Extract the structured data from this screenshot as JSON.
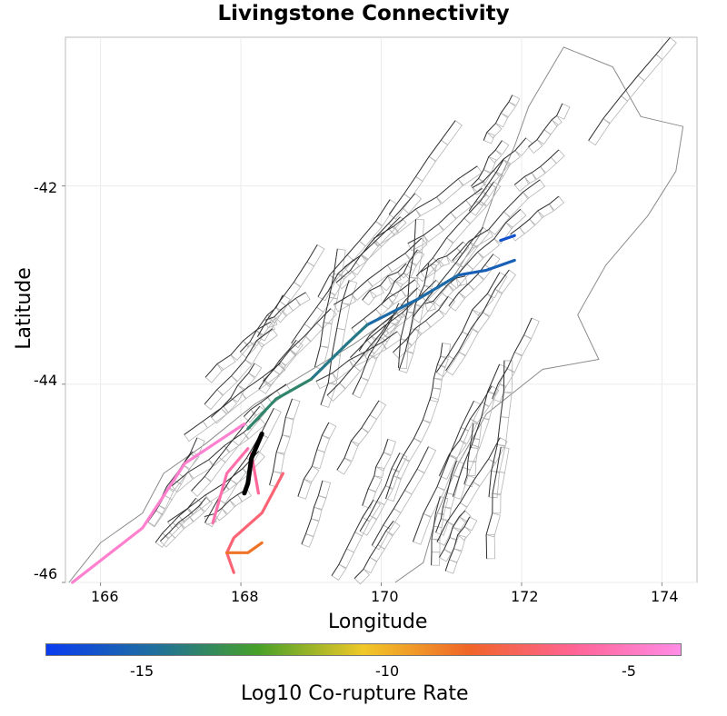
{
  "title": "Livingstone Connectivity",
  "x_axis": {
    "label": "Longitude",
    "ticks": [
      "166",
      "168",
      "170",
      "172",
      "174"
    ],
    "tick_values": [
      166,
      168,
      170,
      172,
      174
    ],
    "range": [
      165.5,
      174.5
    ]
  },
  "y_axis": {
    "label": "Latitude",
    "ticks": [
      "-42",
      "-44",
      "-46"
    ],
    "tick_values": [
      -42,
      -44,
      -46
    ],
    "range": [
      -46,
      -40.5
    ]
  },
  "colorbar": {
    "label": "Log10 Co-rupture Rate",
    "ticks": [
      "-15",
      "-10",
      "-5"
    ],
    "tick_values": [
      -15,
      -10,
      -5
    ],
    "range": [
      -16.5,
      -4
    ],
    "colors": [
      "#0a3cf0",
      "#1e6ea0",
      "#46a028",
      "#f0c828",
      "#f06428",
      "#ff6496",
      "#ff8ce6"
    ]
  },
  "highlighted_fault": {
    "name": "Livingstone",
    "color": "#000000"
  },
  "map_data": {
    "type": "fault-map",
    "highlighted_ruptures": [
      {
        "coords": [
          [
            171.7,
            -42.55
          ],
          [
            171.9,
            -42.5
          ]
        ],
        "log10_rate": -15.6
      },
      {
        "coords": [
          [
            171.1,
            -42.9
          ],
          [
            171.5,
            -42.85
          ],
          [
            171.9,
            -42.75
          ]
        ],
        "log10_rate": -15.0
      },
      {
        "coords": [
          [
            169.8,
            -43.4
          ],
          [
            170.5,
            -43.15
          ],
          [
            171.1,
            -42.9
          ]
        ],
        "log10_rate": -14.6
      },
      {
        "coords": [
          [
            169.0,
            -43.95
          ],
          [
            169.5,
            -43.6
          ],
          [
            169.8,
            -43.4
          ]
        ],
        "log10_rate": -14.0
      },
      {
        "coords": [
          [
            168.1,
            -44.45
          ],
          [
            168.5,
            -44.15
          ],
          [
            169.0,
            -43.95
          ]
        ],
        "log10_rate": -13.5
      },
      {
        "coords": [
          [
            168.05,
            -44.4
          ],
          [
            167.2,
            -44.8
          ],
          [
            166.6,
            -45.45
          ],
          [
            165.6,
            -46.0
          ]
        ],
        "log10_rate": -4.6
      },
      {
        "coords": [
          [
            167.6,
            -45.4
          ],
          [
            167.8,
            -44.9
          ],
          [
            168.1,
            -44.65
          ]
        ],
        "log10_rate": -5.5
      },
      {
        "coords": [
          [
            168.25,
            -45.1
          ],
          [
            168.15,
            -44.7
          ]
        ],
        "log10_rate": -6.0
      },
      {
        "coords": [
          [
            168.6,
            -44.9
          ],
          [
            168.3,
            -45.3
          ],
          [
            167.9,
            -45.55
          ],
          [
            167.8,
            -45.7
          ],
          [
            167.9,
            -45.9
          ]
        ],
        "log10_rate": -6.7
      },
      {
        "coords": [
          [
            167.8,
            -45.7
          ],
          [
            168.1,
            -45.7
          ],
          [
            168.3,
            -45.6
          ]
        ],
        "log10_rate": -8.5
      }
    ],
    "source_fault": {
      "coords": [
        [
          168.3,
          -44.5
        ],
        [
          168.15,
          -44.75
        ],
        [
          168.1,
          -45.0
        ],
        [
          168.05,
          -45.1
        ]
      ]
    }
  }
}
